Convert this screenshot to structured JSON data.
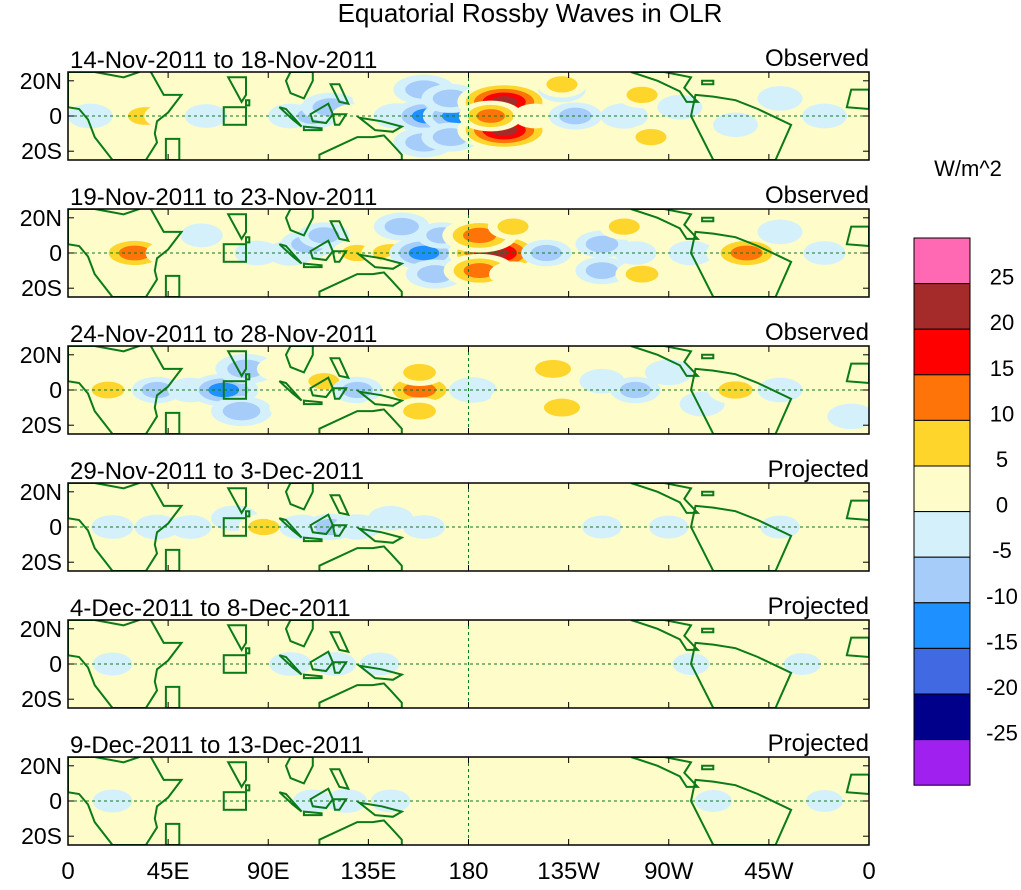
{
  "chart_data": {
    "type": "heatmap",
    "title": "Equatorial Rossby Waves in OLR",
    "variable": "OLR",
    "x_tick_labels": [
      "0",
      "45E",
      "90E",
      "135E",
      "180",
      "135W",
      "90W",
      "45W",
      "0"
    ],
    "y_tick_labels": [
      "20N",
      "0",
      "20S"
    ],
    "xlim": [
      0,
      360
    ],
    "ylim": [
      -25,
      25
    ],
    "colorbar": {
      "title": "W/m^2",
      "levels": [
        -25,
        -20,
        -15,
        -10,
        -5,
        0,
        5,
        10,
        15,
        20,
        25
      ],
      "level_labels": [
        "-25",
        "-20",
        "-15",
        "-10",
        "-5",
        "0",
        "5",
        "10",
        "15",
        "20",
        "25"
      ],
      "colors": [
        "#a020f0",
        "#00008b",
        "#4169e1",
        "#1e90ff",
        "#a6cdfa",
        "#d4f1fb",
        "#fefcc8",
        "#fed52a",
        "#ff7408",
        "#ff0000",
        "#a52a2a",
        "#ff69b4"
      ]
    },
    "box_region": {
      "lon": [
        70,
        80
      ],
      "lat": [
        -5,
        5
      ]
    },
    "panels": [
      {
        "period": "14-Nov-2011 to 18-Nov-2011",
        "status": "Observed",
        "cells": [
          [
            10,
            0,
            -4
          ],
          [
            30,
            -5,
            4
          ],
          [
            35,
            0,
            9
          ],
          [
            45,
            0,
            5
          ],
          [
            55,
            8,
            3
          ],
          [
            62,
            0,
            -3
          ],
          [
            100,
            0,
            -4
          ],
          [
            110,
            0,
            -6
          ],
          [
            118,
            5,
            -9
          ],
          [
            128,
            0,
            3
          ],
          [
            138,
            10,
            4
          ],
          [
            140,
            -10,
            3
          ],
          [
            148,
            0,
            -5
          ],
          [
            162,
            0,
            -15
          ],
          [
            160,
            15,
            -10
          ],
          [
            160,
            -15,
            -10
          ],
          [
            175,
            0,
            -13
          ],
          [
            172,
            10,
            -9
          ],
          [
            172,
            -12,
            -9
          ],
          [
            196,
            8,
            22
          ],
          [
            196,
            -8,
            22
          ],
          [
            190,
            0,
            11
          ],
          [
            210,
            0,
            4
          ],
          [
            222,
            15,
            -5
          ],
          [
            228,
            0,
            -7
          ],
          [
            250,
            0,
            -5
          ],
          [
            222,
            18,
            6
          ],
          [
            258,
            12,
            6
          ],
          [
            262,
            -12,
            6
          ],
          [
            275,
            5,
            -4
          ],
          [
            300,
            -5,
            -4
          ],
          [
            320,
            10,
            -4
          ],
          [
            340,
            0,
            -4
          ]
        ]
      },
      {
        "period": "19-Nov-2011 to 23-Nov-2011",
        "status": "Observed",
        "cells": [
          [
            20,
            0,
            4
          ],
          [
            30,
            0,
            14
          ],
          [
            45,
            0,
            4
          ],
          [
            60,
            10,
            -3
          ],
          [
            85,
            0,
            -4
          ],
          [
            100,
            0,
            -5
          ],
          [
            108,
            5,
            -8
          ],
          [
            115,
            10,
            -6
          ],
          [
            130,
            0,
            6
          ],
          [
            140,
            10,
            5
          ],
          [
            145,
            0,
            9
          ],
          [
            150,
            -8,
            5
          ],
          [
            150,
            15,
            -8
          ],
          [
            160,
            0,
            -13
          ],
          [
            165,
            -12,
            -9
          ],
          [
            168,
            10,
            -6
          ],
          [
            192,
            0,
            22
          ],
          [
            185,
            10,
            15
          ],
          [
            185,
            -10,
            14
          ],
          [
            200,
            15,
            6
          ],
          [
            200,
            -12,
            5
          ],
          [
            215,
            0,
            -6
          ],
          [
            240,
            5,
            -7
          ],
          [
            240,
            -10,
            -7
          ],
          [
            250,
            15,
            -5
          ],
          [
            250,
            15,
            6
          ],
          [
            258,
            -12,
            7
          ],
          [
            255,
            0,
            -3
          ],
          [
            280,
            0,
            -4
          ],
          [
            300,
            0,
            9
          ],
          [
            305,
            0,
            14
          ],
          [
            320,
            12,
            -4
          ],
          [
            340,
            0,
            -3
          ]
        ]
      },
      {
        "period": "24-Nov-2011 to 28-Nov-2011",
        "status": "Observed",
        "cells": [
          [
            10,
            0,
            4
          ],
          [
            18,
            0,
            7
          ],
          [
            40,
            0,
            -6
          ],
          [
            55,
            0,
            -4
          ],
          [
            70,
            0,
            -13
          ],
          [
            78,
            -12,
            -10
          ],
          [
            80,
            12,
            -10
          ],
          [
            95,
            12,
            4
          ],
          [
            100,
            -10,
            3
          ],
          [
            115,
            5,
            6
          ],
          [
            130,
            0,
            -6
          ],
          [
            130,
            18,
            4
          ],
          [
            140,
            -12,
            4
          ],
          [
            158,
            0,
            15
          ],
          [
            158,
            10,
            7
          ],
          [
            158,
            -12,
            7
          ],
          [
            182,
            0,
            -5
          ],
          [
            200,
            15,
            5
          ],
          [
            200,
            -5,
            4
          ],
          [
            218,
            12,
            9
          ],
          [
            222,
            -10,
            9
          ],
          [
            240,
            5,
            -4
          ],
          [
            255,
            0,
            -6
          ],
          [
            270,
            10,
            -5
          ],
          [
            285,
            -8,
            -4
          ],
          [
            300,
            10,
            4
          ],
          [
            300,
            0,
            8
          ],
          [
            320,
            0,
            -4
          ],
          [
            345,
            0,
            4
          ],
          [
            352,
            -15,
            -5
          ]
        ]
      },
      {
        "period": "29-Nov-2011 to 3-Dec-2011",
        "status": "Projected",
        "cells": [
          [
            20,
            0,
            -3
          ],
          [
            40,
            0,
            -4
          ],
          [
            55,
            0,
            -3
          ],
          [
            75,
            5,
            -5
          ],
          [
            88,
            0,
            6
          ],
          [
            95,
            10,
            3
          ],
          [
            105,
            0,
            -4
          ],
          [
            118,
            0,
            -6
          ],
          [
            130,
            0,
            -5
          ],
          [
            145,
            5,
            -4
          ],
          [
            160,
            0,
            -3
          ],
          [
            195,
            10,
            3
          ],
          [
            210,
            12,
            5
          ],
          [
            215,
            -8,
            5
          ],
          [
            225,
            0,
            3
          ],
          [
            240,
            0,
            -2
          ],
          [
            270,
            0,
            -2
          ],
          [
            320,
            0,
            -2
          ]
        ]
      },
      {
        "period": "4-Dec-2011 to 8-Dec-2011",
        "status": "Projected",
        "cells": [
          [
            20,
            0,
            -2
          ],
          [
            45,
            0,
            2
          ],
          [
            60,
            0,
            3
          ],
          [
            78,
            0,
            4
          ],
          [
            100,
            0,
            -3
          ],
          [
            120,
            0,
            -3
          ],
          [
            140,
            0,
            -2
          ],
          [
            165,
            0,
            2
          ],
          [
            190,
            0,
            2
          ],
          [
            230,
            0,
            2
          ],
          [
            280,
            0,
            -1
          ],
          [
            330,
            0,
            -1
          ]
        ]
      },
      {
        "period": "9-Dec-2011 to 13-Dec-2011",
        "status": "Projected",
        "cells": [
          [
            20,
            0,
            -2
          ],
          [
            45,
            0,
            2
          ],
          [
            70,
            0,
            2
          ],
          [
            110,
            0,
            -2
          ],
          [
            125,
            0,
            -3
          ],
          [
            145,
            0,
            -2
          ],
          [
            170,
            0,
            2
          ],
          [
            210,
            0,
            2
          ],
          [
            240,
            0,
            2
          ],
          [
            290,
            0,
            -1
          ],
          [
            340,
            0,
            -1
          ]
        ]
      }
    ]
  }
}
